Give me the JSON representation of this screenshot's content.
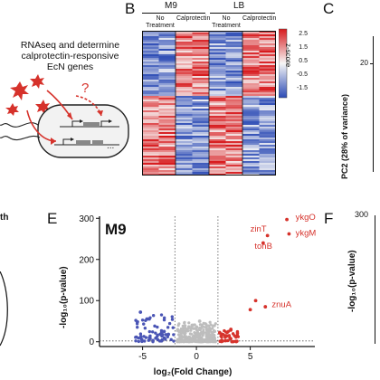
{
  "panel_a": {
    "text_lines": [
      "RNAseq and determine",
      "calprotectin-responsive",
      "EcN genes"
    ],
    "question_mark": "?",
    "ellipsis": "..."
  },
  "panel_b": {
    "letter": "B",
    "group_m9": "M9",
    "group_lb": "LB",
    "col_no_treatment_1": "No",
    "col_no_treatment_2": "Treatment",
    "col_calprotectin": "Calprotectin",
    "colorbar_title": "z-score",
    "colorbar_ticks": [
      "2.5",
      "1.5",
      "0.5",
      "-0.5",
      "-1.5"
    ],
    "colors": {
      "high": "#d7191c",
      "mid": "#f7f7f7",
      "low": "#2c4bb5"
    }
  },
  "panel_c": {
    "letter": "C",
    "y_tick": "20",
    "y_axis_label": "PC2 (28% of variance)"
  },
  "panel_d_partial": {
    "fragment": "th"
  },
  "panel_e": {
    "letter": "E",
    "condition": "M9",
    "xlabel": "log₂(Fold Change)",
    "ylabel": "-log₁₀(p-value)",
    "x_ticks": [
      "-5",
      "0",
      "5"
    ],
    "y_ticks": [
      "300",
      "200",
      "100",
      "0"
    ],
    "gene_labels": [
      "ykgO",
      "zinT",
      "ykgM",
      "tonB",
      "znuA"
    ]
  },
  "panel_f": {
    "letter": "F",
    "y_tick": "300",
    "ylabel": "-log₁₀(p-value)"
  },
  "chart_data": {
    "type": "scatter",
    "title": "M9",
    "xlabel": "log₂(Fold Change)",
    "ylabel": "-log₁₀(p-value)",
    "xlim": [
      -9,
      11
    ],
    "ylim": [
      -5,
      305
    ],
    "fold_change_thresholds": [
      -2,
      2
    ],
    "significance_threshold": 2,
    "series": [
      {
        "color": "#d6322b",
        "points": [
          [
            8.4,
            297
          ],
          [
            8.6,
            262
          ],
          [
            6.6,
            258
          ],
          [
            6.2,
            240
          ],
          [
            6.4,
            85
          ],
          [
            5.5,
            100
          ],
          [
            5.0,
            78
          ],
          [
            3.2,
            30
          ],
          [
            2.8,
            14
          ]
        ]
      },
      {
        "color": "#4a55b5",
        "points": [
          [
            -5.2,
            72
          ],
          [
            -4.6,
            55
          ],
          [
            -3.0,
            25
          ],
          [
            -2.6,
            18
          ]
        ]
      },
      {
        "color": "#bdbdbd",
        "points": [
          [
            -0.4,
            40
          ],
          [
            0.3,
            50
          ],
          [
            0.9,
            35
          ],
          [
            -1.2,
            28
          ],
          [
            1.5,
            22
          ]
        ]
      }
    ]
  }
}
